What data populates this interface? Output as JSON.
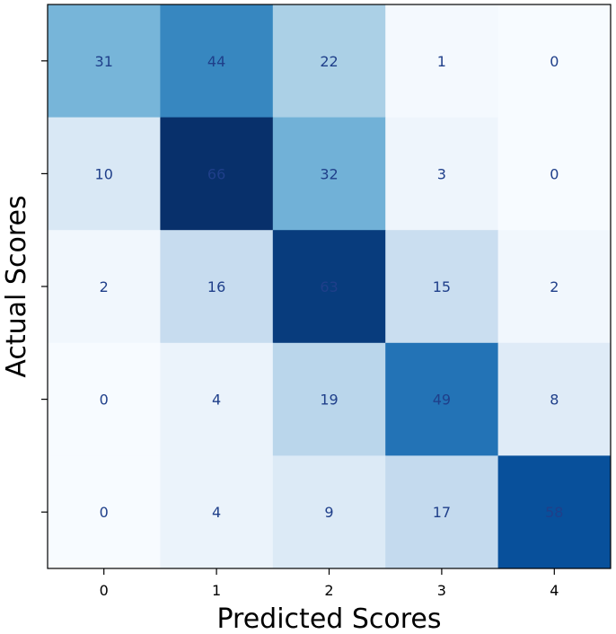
{
  "chart_data": {
    "type": "heatmap",
    "title": "",
    "xlabel": "Predicted Scores",
    "ylabel": "Actual Scores",
    "x_categories": [
      "0",
      "1",
      "2",
      "3",
      "4"
    ],
    "y_categories": [
      "0",
      "1",
      "2",
      "3",
      "4"
    ],
    "matrix": [
      [
        31,
        44,
        22,
        1,
        0
      ],
      [
        10,
        66,
        32,
        3,
        0
      ],
      [
        2,
        16,
        63,
        15,
        2
      ],
      [
        0,
        4,
        19,
        49,
        8
      ],
      [
        0,
        4,
        9,
        17,
        58
      ]
    ],
    "colormap": "Blues",
    "value_range": [
      0,
      66
    ],
    "colorbar": false,
    "grid": false,
    "legend": "none"
  }
}
